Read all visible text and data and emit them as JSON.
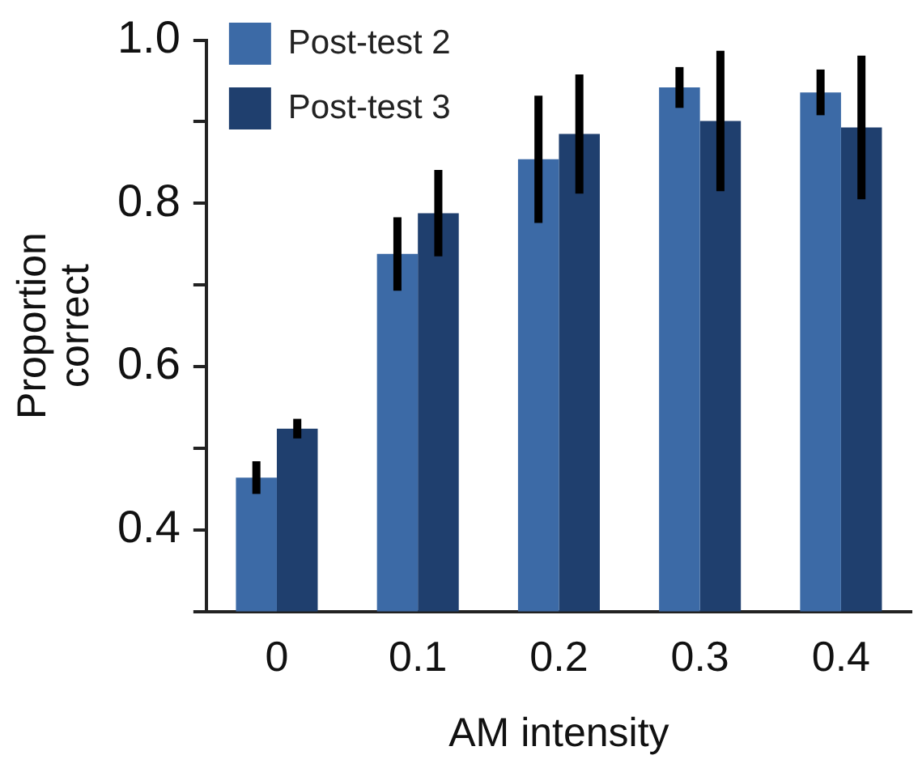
{
  "chart_data": {
    "type": "bar",
    "xlabel": "AM intensity",
    "ylabel": "Proportion correct",
    "categories": [
      "0",
      "0.1",
      "0.2",
      "0.3",
      "0.4"
    ],
    "series": [
      {
        "name": "Post-test 2",
        "color": "#3c6aa6",
        "values": [
          0.464,
          0.738,
          0.854,
          0.942,
          0.936
        ],
        "errors": [
          0.02,
          0.045,
          0.078,
          0.025,
          0.028
        ]
      },
      {
        "name": "Post-test 3",
        "color": "#1f3f6e",
        "values": [
          0.524,
          0.788,
          0.885,
          0.901,
          0.893
        ],
        "errors": [
          0.012,
          0.053,
          0.073,
          0.086,
          0.088
        ]
      }
    ],
    "ylim": [
      0.3,
      1.0
    ],
    "yticks": [
      {
        "value": 0.3,
        "label": null
      },
      0.4,
      {
        "value": 0.5,
        "label": null
      },
      0.6,
      {
        "value": 0.7,
        "label": null
      },
      0.8,
      {
        "value": 0.9,
        "label": null
      },
      {
        "value": 1.0,
        "label": "1.0"
      }
    ],
    "grid": false,
    "legend": "top left"
  }
}
